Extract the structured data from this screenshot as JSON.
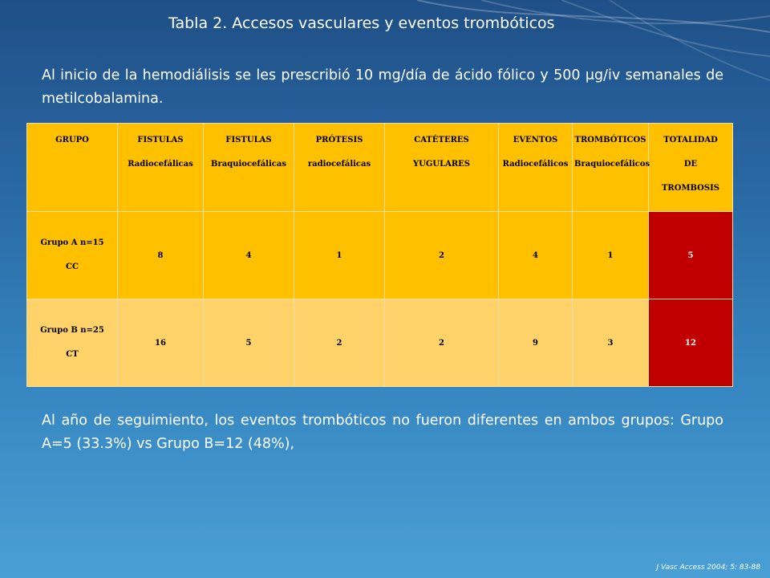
{
  "slide": {
    "title": "Tabla 2. Accesos vasculares y eventos trombóticos",
    "intro": "Al inicio de la hemodiálisis se les prescribió 10 mg/día de ácido fólico y 500 μg/iv semanales de metilcobalamina.",
    "conclusion": "Al año de seguimiento, los eventos trombóticos no fueron diferentes en ambos grupos: Grupo A=5 (33.3%) vs Grupo B=12 (48%),",
    "reference": "J Vasc Access 2004; 5: 83-88"
  },
  "table": {
    "headers": [
      {
        "line1": "GRUPO",
        "line2": "",
        "line3": ""
      },
      {
        "line1": "FISTULAS",
        "line2": "Radiocefálicas",
        "line3": ""
      },
      {
        "line1": "FISTULAS",
        "line2": "Braquiocefálicas",
        "line3": ""
      },
      {
        "line1": "PRÓTESIS",
        "line2": "radiocefálicas",
        "line3": ""
      },
      {
        "line1": "CATÉTERES",
        "line2": "YUGULARES",
        "line3": ""
      },
      {
        "line1": "EVENTOS",
        "line2": "Radiocefálicos",
        "line3": ""
      },
      {
        "line1": "TROMBÓTICOS",
        "line2": "Braquiocefálicos",
        "line3": ""
      },
      {
        "line1": "TOTALIDAD",
        "line2": "DE",
        "line3": "TROMBOSIS"
      }
    ],
    "rows": [
      {
        "label1": "Grupo A n=15",
        "label2": "CC",
        "values": [
          "8",
          "4",
          "1",
          "2",
          "4",
          "1",
          "5"
        ]
      },
      {
        "label1": "Grupo B n=25",
        "label2": "CT",
        "values": [
          "16",
          "5",
          "2",
          "2",
          "9",
          "3",
          "12"
        ]
      }
    ]
  },
  "colors": {
    "background": "#2a6aa6",
    "header_fill": "#ffc000",
    "row_a_fill": "#ffc000",
    "row_b_fill": "#ffd36a",
    "total_fill": "#c00000"
  }
}
